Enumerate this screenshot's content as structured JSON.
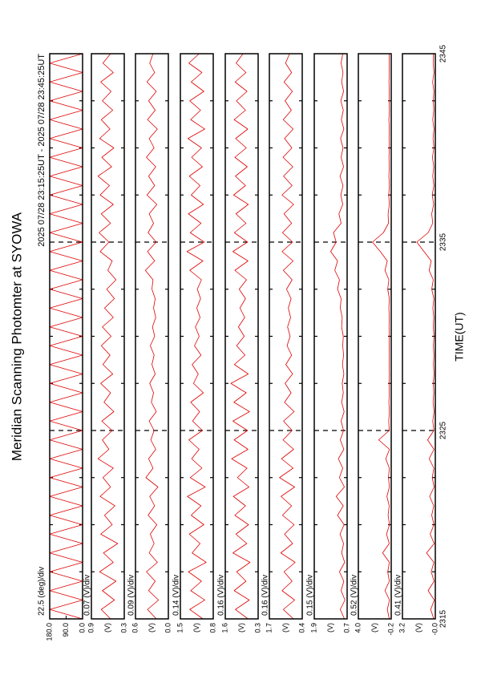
{
  "title": "Meridian Scanning Photomter at SYOWA",
  "time_range": "2025 07/28 23:15:25UT - 2025 07/28 23:45:25UT",
  "xlabel": "TIME(UT)",
  "time_axis": {
    "x": [
      2315,
      2315.5,
      2316,
      2316.5,
      2317,
      2317.5,
      2318,
      2318.5,
      2319,
      2319.5,
      2320,
      2320.5,
      2321,
      2321.5,
      2322,
      2322.5,
      2323,
      2323.5,
      2324,
      2324.5,
      2325,
      2325.5,
      2326,
      2326.5,
      2327,
      2327.5,
      2328,
      2328.5,
      2329,
      2329.5,
      2330,
      2330.5,
      2331,
      2331.5,
      2332,
      2332.5,
      2333,
      2333.5,
      2334,
      2334.5,
      2335,
      2335.5,
      2336,
      2336.5,
      2337,
      2337.5,
      2338,
      2338.5,
      2339,
      2339.5,
      2340,
      2340.5,
      2341,
      2341.5,
      2342,
      2342.5,
      2343,
      2343.5,
      2344,
      2344.5,
      2345
    ],
    "xlim": [
      2315,
      2345
    ],
    "xticks": [
      2315,
      2325,
      2335,
      2345
    ],
    "xminor": [
      2317.5,
      2320,
      2322.5,
      2327.5,
      2330,
      2332.5,
      2337.5,
      2340,
      2342.5
    ]
  },
  "chart_data": [
    {
      "type": "line",
      "scale_label": "22.5 (deg)/div",
      "color": "#e00000",
      "ylim": [
        0,
        180
      ],
      "yticks": [
        {
          "value": 0,
          "label": "0.0"
        },
        {
          "value": 90,
          "label": "90.0"
        },
        {
          "value": 180,
          "label": "180.0"
        }
      ],
      "values": [
        0,
        180,
        0,
        180,
        0,
        180,
        0,
        180,
        0,
        180,
        0,
        180,
        0,
        180,
        0,
        180,
        0,
        180,
        0,
        180,
        0,
        180,
        0,
        180,
        0,
        180,
        0,
        180,
        0,
        180,
        0,
        180,
        0,
        180,
        0,
        180,
        0,
        180,
        0,
        180,
        0,
        180,
        0,
        180,
        0,
        180,
        0,
        180,
        0,
        180,
        0,
        180,
        0,
        180,
        0,
        180,
        0,
        180,
        0,
        180,
        0
      ]
    },
    {
      "type": "line",
      "scale_label": "0.07 (V)/div",
      "ylabel": "(V)",
      "color": "#e00000",
      "ylim": [
        0.3,
        0.9
      ],
      "yticks": [
        0.3,
        0.9
      ],
      "values": [
        0.55,
        0.72,
        0.48,
        0.7,
        0.45,
        0.75,
        0.5,
        0.68,
        0.42,
        0.73,
        0.52,
        0.66,
        0.47,
        0.74,
        0.55,
        0.69,
        0.5,
        0.78,
        0.58,
        0.7,
        0.52,
        0.71,
        0.49,
        0.67,
        0.55,
        0.73,
        0.51,
        0.69,
        0.56,
        0.72,
        0.54,
        0.7,
        0.5,
        0.66,
        0.48,
        0.62,
        0.45,
        0.6,
        0.52,
        0.74,
        0.58,
        0.76,
        0.55,
        0.72,
        0.5,
        0.74,
        0.57,
        0.78,
        0.53,
        0.71,
        0.49,
        0.75,
        0.56,
        0.72,
        0.51,
        0.7,
        0.54,
        0.73,
        0.5,
        0.69,
        0.55
      ]
    },
    {
      "type": "line",
      "scale_label": "0.09 (V)/div",
      "ylabel": "(V)",
      "color": "#e00000",
      "ylim": [
        0,
        0.6
      ],
      "yticks": [
        {
          "value": 0,
          "label": "0.0"
        },
        0.6
      ],
      "values": [
        0.22,
        0.38,
        0.18,
        0.36,
        0.24,
        0.4,
        0.2,
        0.35,
        0.26,
        0.33,
        0.21,
        0.37,
        0.25,
        0.34,
        0.19,
        0.41,
        0.28,
        0.36,
        0.23,
        0.32,
        0.26,
        0.35,
        0.22,
        0.31,
        0.27,
        0.34,
        0.24,
        0.3,
        0.26,
        0.33,
        0.25,
        0.29,
        0.23,
        0.27,
        0.24,
        0.3,
        0.28,
        0.42,
        0.25,
        0.38,
        0.22,
        0.37,
        0.27,
        0.35,
        0.21,
        0.39,
        0.25,
        0.36,
        0.23,
        0.4,
        0.26,
        0.35,
        0.2,
        0.38,
        0.24,
        0.36,
        0.22,
        0.39,
        0.25,
        0.34,
        0.28
      ]
    },
    {
      "type": "line",
      "scale_label": "0.14 (V)/div",
      "ylabel": "(V)",
      "color": "#e00000",
      "ylim": [
        0.8,
        1.5
      ],
      "yticks": [
        0.8,
        1.5
      ],
      "values": [
        1.02,
        1.3,
        0.98,
        1.28,
        1.05,
        1.33,
        0.95,
        1.25,
        1.08,
        1.31,
        1.0,
        1.27,
        1.06,
        1.35,
        0.97,
        1.29,
        1.04,
        1.26,
        1.1,
        1.32,
        1.03,
        1.24,
        1.09,
        1.28,
        1.01,
        1.22,
        1.12,
        1.25,
        1.06,
        1.2,
        1.1,
        1.18,
        1.08,
        1.15,
        1.07,
        1.14,
        1.05,
        1.3,
        1.02,
        1.36,
        0.99,
        1.29,
        1.06,
        1.33,
        1.01,
        1.27,
        1.08,
        1.31,
        1.03,
        1.26,
        1.05,
        1.34,
        0.98,
        1.28,
        1.07,
        1.3,
        1.0,
        1.27,
        1.04,
        1.32,
        1.1
      ]
    },
    {
      "type": "line",
      "scale_label": "0.16 (V)/div",
      "ylabel": "(V)",
      "color": "#e00000",
      "ylim": [
        0.3,
        1.6
      ],
      "yticks": [
        0.3,
        1.6
      ],
      "values": [
        0.7,
        1.2,
        0.65,
        1.25,
        0.78,
        1.15,
        0.62,
        1.3,
        0.75,
        1.18,
        0.68,
        1.22,
        0.8,
        1.28,
        0.66,
        1.12,
        0.74,
        1.35,
        0.7,
        1.25,
        0.72,
        1.3,
        0.64,
        1.26,
        0.77,
        1.38,
        0.69,
        1.24,
        0.82,
        1.15,
        0.85,
        1.08,
        0.83,
        1.02,
        0.8,
        1.05,
        0.76,
        1.22,
        0.7,
        1.3,
        0.72,
        1.24,
        0.78,
        1.18,
        0.69,
        1.27,
        0.8,
        1.2,
        0.73,
        1.22,
        0.77,
        1.19,
        0.71,
        1.25,
        0.8,
        1.16,
        0.74,
        1.21,
        0.78,
        1.17,
        0.9
      ]
    },
    {
      "type": "line",
      "scale_label": "0.16 (V)/div",
      "ylabel": "(V)",
      "color": "#e00000",
      "ylim": [
        0.4,
        1.7
      ],
      "yticks": [
        0.4,
        1.7
      ],
      "values": [
        0.75,
        1.15,
        0.7,
        1.2,
        0.8,
        1.12,
        0.68,
        1.25,
        0.78,
        1.1,
        0.72,
        1.18,
        0.82,
        1.24,
        0.7,
        1.3,
        0.76,
        1.22,
        0.74,
        1.16,
        0.8,
        1.14,
        0.72,
        1.1,
        0.84,
        1.08,
        0.78,
        1.05,
        0.82,
        1.0,
        0.88,
        0.98,
        0.86,
        0.95,
        0.84,
        1.02,
        0.8,
        1.15,
        0.76,
        1.2,
        0.78,
        1.18,
        0.82,
        1.12,
        0.74,
        1.2,
        0.8,
        1.14,
        0.77,
        1.16,
        0.81,
        1.1,
        0.76,
        1.15,
        0.83,
        1.08,
        0.79,
        1.12,
        0.82,
        1.06,
        0.9
      ]
    },
    {
      "type": "line",
      "scale_label": "0.15 (V)/div",
      "ylabel": "(V)",
      "color": "#e00000",
      "ylim": [
        0.7,
        1.9
      ],
      "yticks": [
        0.7,
        1.9
      ],
      "values": [
        0.8,
        0.95,
        0.78,
        0.92,
        0.82,
        0.98,
        0.79,
        0.9,
        0.83,
        0.96,
        0.81,
        1.05,
        0.84,
        1.1,
        0.8,
        0.98,
        0.86,
        1.02,
        0.82,
        0.95,
        0.83,
        0.92,
        0.81,
        0.9,
        0.84,
        0.88,
        0.82,
        0.87,
        0.83,
        0.86,
        0.84,
        0.9,
        0.88,
        0.95,
        0.92,
        1.05,
        0.98,
        1.15,
        1.05,
        1.3,
        1.1,
        1.2,
        0.92,
        1.0,
        0.86,
        0.93,
        0.85,
        0.96,
        0.83,
        0.92,
        0.85,
        0.94,
        0.82,
        0.91,
        0.84,
        0.93,
        0.83,
        0.9,
        0.85,
        0.92,
        0.86
      ]
    },
    {
      "type": "line",
      "scale_label": "0.52 (V)/div",
      "ylabel": "(V)",
      "color": "#e00000",
      "ylim": [
        -0.2,
        4.0
      ],
      "yticks": [
        -0.2,
        {
          "value": 4.0,
          "label": "4.0"
        }
      ],
      "values": [
        0.05,
        0.3,
        0.02,
        0.6,
        0.04,
        0.25,
        0.03,
        0.9,
        0.05,
        0.4,
        0.02,
        0.2,
        0.06,
        0.35,
        0.03,
        0.15,
        0.04,
        0.5,
        0.02,
        1.4,
        0.05,
        0.12,
        0.03,
        0.1,
        0.04,
        0.08,
        0.03,
        0.07,
        0.04,
        0.06,
        0.03,
        0.08,
        0.05,
        0.1,
        0.04,
        0.25,
        0.1,
        0.6,
        0.3,
        1.2,
        2.2,
        0.8,
        0.15,
        0.2,
        0.04,
        0.12,
        0.03,
        0.1,
        0.05,
        0.09,
        0.03,
        0.08,
        0.04,
        0.1,
        0.03,
        0.07,
        0.05,
        0.09,
        0.04,
        0.06,
        0.05
      ]
    },
    {
      "type": "line",
      "scale_label": "0.41 (V)/div",
      "ylabel": "(V)",
      "color": "#e00000",
      "ylim": [
        0,
        3.2
      ],
      "yticks": [
        {
          "value": 0,
          "label": "-0.0"
        },
        3.2
      ],
      "values": [
        0.15,
        0.45,
        0.1,
        0.7,
        0.12,
        0.4,
        0.14,
        0.85,
        0.11,
        0.5,
        0.13,
        0.35,
        0.15,
        0.55,
        0.12,
        0.3,
        0.14,
        0.6,
        0.13,
        0.75,
        0.14,
        0.25,
        0.12,
        0.22,
        0.15,
        0.2,
        0.13,
        0.18,
        0.14,
        0.19,
        0.13,
        0.2,
        0.15,
        0.24,
        0.14,
        0.35,
        0.2,
        0.6,
        0.4,
        1.1,
        1.8,
        0.7,
        0.25,
        0.35,
        0.16,
        0.3,
        0.14,
        0.25,
        0.15,
        0.28,
        0.14,
        0.22,
        0.13,
        0.25,
        0.15,
        0.2,
        0.14,
        0.26,
        0.13,
        0.21,
        0.18
      ]
    }
  ]
}
